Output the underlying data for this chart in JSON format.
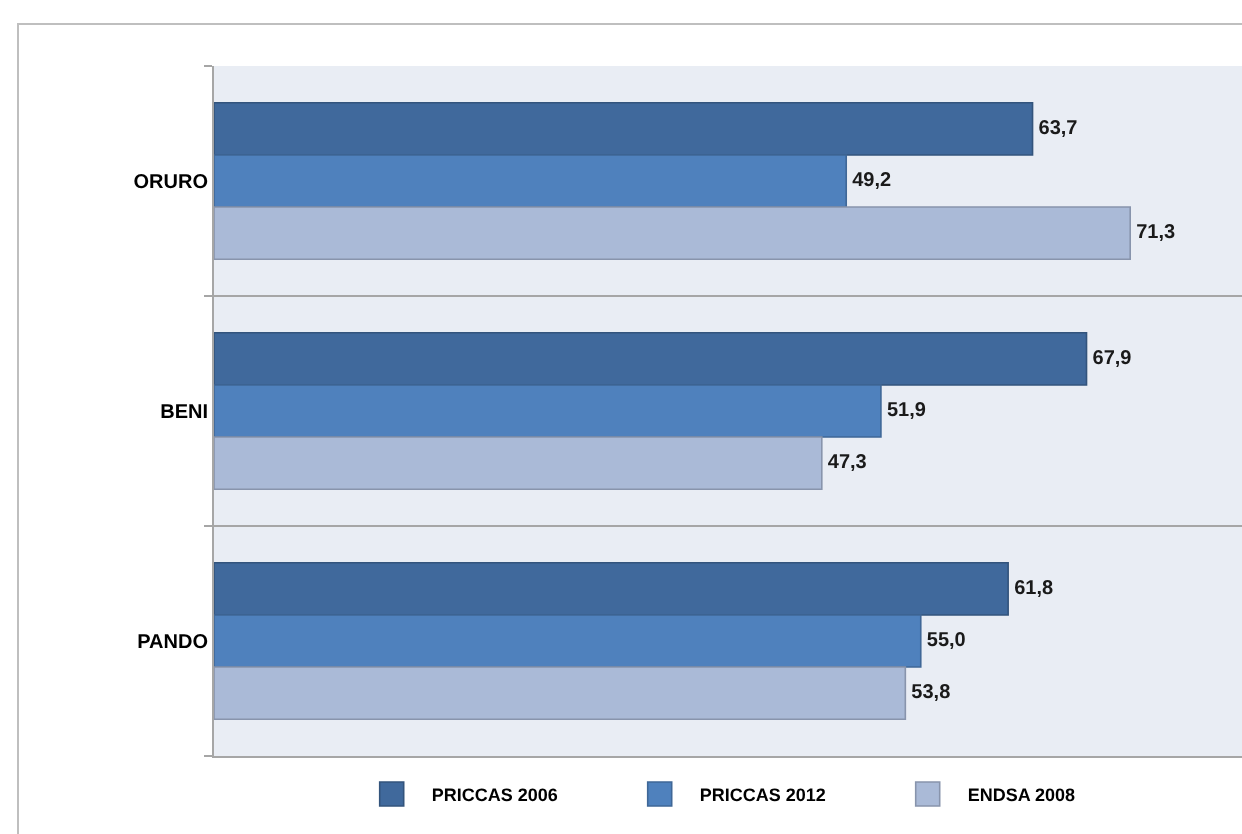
{
  "chart_data": {
    "type": "bar",
    "orientation": "horizontal",
    "categories": [
      "ORURO",
      "BENI",
      "PANDO"
    ],
    "series": [
      {
        "name": "PRICCAS 2006",
        "color": "#40699c",
        "values": [
          63.7,
          67.9,
          61.8
        ],
        "value_labels": [
          "63,7",
          "67,9",
          "61,8"
        ]
      },
      {
        "name": "PRICCAS 2012",
        "color": "#4f81bd",
        "values": [
          49.2,
          51.9,
          55.0
        ],
        "value_labels": [
          "49,2",
          "51,9",
          "55,0"
        ]
      },
      {
        "name": "ENDSA 2008",
        "color": "#aabad7",
        "values": [
          71.3,
          47.3,
          53.8
        ],
        "value_labels": [
          "71,3",
          "47,3",
          "53,8"
        ]
      }
    ],
    "xlim": [
      0,
      80
    ],
    "grid": "y",
    "legend": "bottom",
    "tick_labels": "y"
  }
}
